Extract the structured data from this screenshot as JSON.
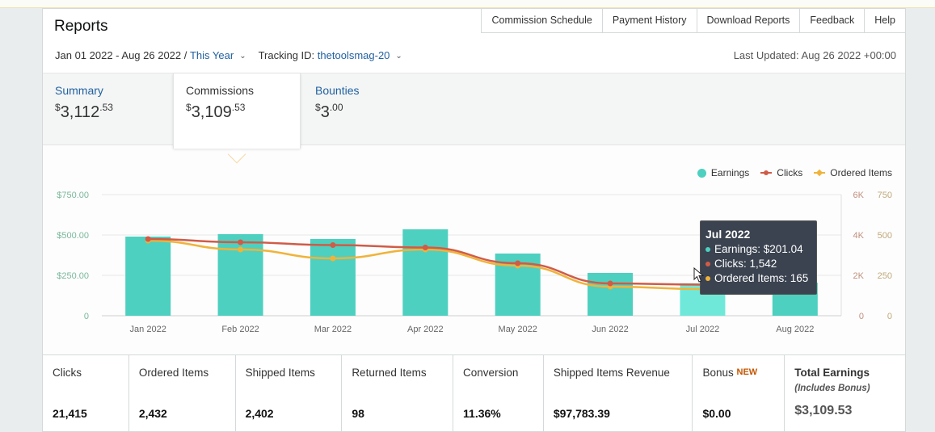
{
  "header": {
    "title": "Reports",
    "nav": [
      "Commission Schedule",
      "Payment History",
      "Download Reports",
      "Feedback",
      "Help"
    ],
    "date_range": "Jan 01 2022 - Aug 26 2022 /",
    "period": "This Year",
    "tracking_label": "Tracking ID:",
    "tracking_id": "thetoolsmag-20",
    "last_updated": "Last Updated: Aug 26 2022 +00:00"
  },
  "tabs": [
    {
      "label": "Summary",
      "currency": "$",
      "whole": "3,112",
      "cents": ".53"
    },
    {
      "label": "Commissions",
      "currency": "$",
      "whole": "3,109",
      "cents": ".53"
    },
    {
      "label": "Bounties",
      "currency": "$",
      "whole": "3",
      "cents": ".00"
    }
  ],
  "legend": {
    "earnings": "Earnings",
    "clicks": "Clicks",
    "ordered": "Ordered Items"
  },
  "tooltip": {
    "title": "Jul 2022",
    "earnings": "Earnings: $201.04",
    "clicks": "Clicks: 1,542",
    "ordered": "Ordered Items: 165"
  },
  "colors": {
    "earnings": "#4dd0c0",
    "earnings_highlight": "#6fe8da",
    "clicks": "#d05b47",
    "ordered": "#f0b33a",
    "link": "#2162a1"
  },
  "chart_data": {
    "type": "bar",
    "categories": [
      "Jan 2022",
      "Feb 2022",
      "Mar 2022",
      "Apr 2022",
      "May 2022",
      "Jun 2022",
      "Jul 2022",
      "Aug 2022"
    ],
    "left_axis": {
      "ticks": [
        "0",
        "$250.00",
        "$500.00",
        "$750.00"
      ],
      "range": [
        0,
        750
      ]
    },
    "right_axis_clicks": {
      "ticks": [
        "0",
        "2K",
        "4K",
        "6K"
      ],
      "range": [
        0,
        6000
      ]
    },
    "right_axis_ordered": {
      "ticks": [
        "0",
        "250",
        "500",
        "750"
      ],
      "range": [
        0,
        750
      ]
    },
    "series": [
      {
        "name": "Earnings",
        "type": "bar",
        "axis": "left",
        "values": [
          490,
          505,
          475,
          535,
          385,
          265,
          201.04,
          205
        ]
      },
      {
        "name": "Clicks",
        "type": "line",
        "axis": "clicks",
        "values": [
          3800,
          3640,
          3500,
          3380,
          2600,
          1600,
          1542,
          1540
        ]
      },
      {
        "name": "Ordered Items",
        "type": "line",
        "axis": "ordered",
        "values": [
          465,
          410,
          355,
          410,
          310,
          180,
          165,
          165
        ]
      }
    ],
    "highlight_index": 6,
    "grid": true,
    "legend_position": "top-right"
  },
  "stats": [
    {
      "label": "Clicks",
      "value": "21,415"
    },
    {
      "label": "Ordered Items",
      "value": "2,432"
    },
    {
      "label": "Shipped Items",
      "value": "2,402"
    },
    {
      "label": "Returned Items",
      "value": "98"
    },
    {
      "label": "Conversion",
      "value": "11.36%"
    },
    {
      "label": "Shipped Items Revenue",
      "value": "$97,783.39"
    },
    {
      "label": "Bonus",
      "badge": "NEW",
      "value": "$0.00"
    }
  ],
  "total": {
    "label": "Total Earnings",
    "sub": "(Includes Bonus)",
    "value": "$3,109.53"
  }
}
